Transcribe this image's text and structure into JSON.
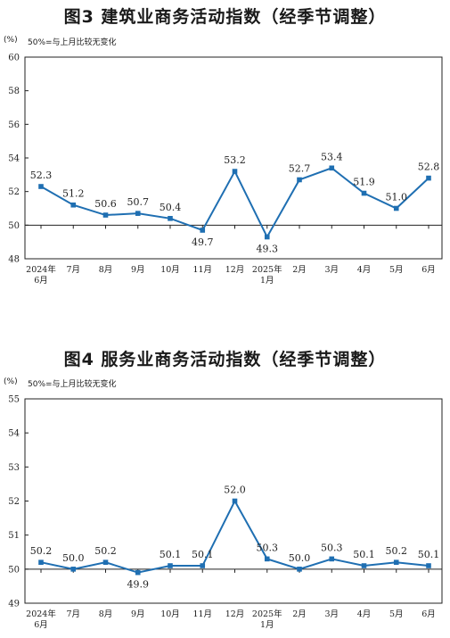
{
  "chart_data": [
    {
      "type": "line",
      "title": "图3  建筑业商务活动指数（经季节调整）",
      "unit": "(%)",
      "note": "50%=与上月比较无变化",
      "categories": [
        "2024年\n6月",
        "7月",
        "8月",
        "9月",
        "10月",
        "11月",
        "12月",
        "2025年\n1月",
        "2月",
        "3月",
        "4月",
        "5月",
        "6月"
      ],
      "values": [
        52.3,
        51.2,
        50.6,
        50.7,
        50.4,
        49.7,
        53.2,
        49.3,
        52.7,
        53.4,
        51.9,
        51.0,
        52.8
      ],
      "value_labels": [
        "52.3",
        "51.2",
        "50.6",
        "50.7",
        "50.4",
        "49.7",
        "53.2",
        "49.3",
        "52.7",
        "53.4",
        "51.9",
        "51.0",
        "52.8"
      ],
      "ylim": [
        48,
        60
      ],
      "yticks": [
        48,
        50,
        52,
        54,
        56,
        58,
        60
      ],
      "reference_line": 50,
      "color": "#1f6fb2"
    },
    {
      "type": "line",
      "title": "图4  服务业商务活动指数（经季节调整）",
      "unit": "(%)",
      "note": "50%=与上月比较无变化",
      "categories": [
        "2024年\n6月",
        "7月",
        "8月",
        "9月",
        "10月",
        "11月",
        "12月",
        "2025年\n1月",
        "2月",
        "3月",
        "4月",
        "5月",
        "6月"
      ],
      "values": [
        50.2,
        50.0,
        50.2,
        49.9,
        50.1,
        50.1,
        52.0,
        50.3,
        50.0,
        50.3,
        50.1,
        50.2,
        50.1
      ],
      "value_labels": [
        "50.2",
        "50.0",
        "50.2",
        "49.9",
        "50.1",
        "50.1",
        "52.0",
        "50.3",
        "50.0",
        "50.3",
        "50.1",
        "50.2",
        "50.1"
      ],
      "ylim": [
        49,
        55
      ],
      "yticks": [
        49,
        50,
        51,
        52,
        53,
        54,
        55
      ],
      "reference_line": 50,
      "color": "#1f6fb2"
    }
  ]
}
